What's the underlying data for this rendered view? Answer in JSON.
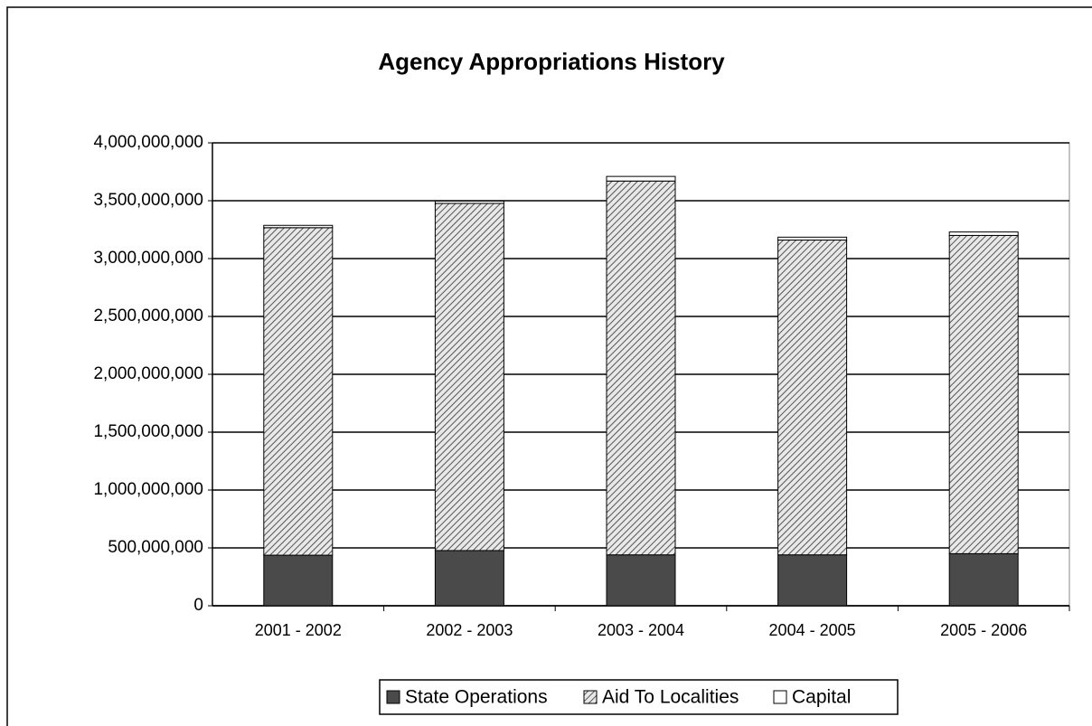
{
  "chart_data": {
    "type": "stacked_bar",
    "title": "Agency Appropriations History",
    "categories": [
      "2001 - 2002",
      "2002 - 2003",
      "2003 - 2004",
      "2004 - 2005",
      "2005 - 2006"
    ],
    "series": [
      {
        "name": "State Operations",
        "color": "#4a4a4a",
        "hatch": false,
        "values": [
          437000000,
          477000000,
          440000000,
          440000000,
          450000000
        ]
      },
      {
        "name": "Aid To Localities",
        "color": "#b8b8b8",
        "hatch": true,
        "values": [
          2830000000,
          3000000000,
          3230000000,
          2720000000,
          2750000000
        ]
      },
      {
        "name": "Capital",
        "color": "#ffffff",
        "hatch": false,
        "values": [
          20000000,
          20000000,
          40000000,
          25000000,
          30000000
        ]
      }
    ],
    "ylim": [
      0,
      4000000000
    ],
    "yticks": [
      0,
      {
        "value": 500000000,
        "label": "500,000,000"
      },
      {
        "value": 1000000000,
        "label": "1,000,000,000"
      },
      {
        "value": 1500000000,
        "label": "1,500,000,000"
      },
      {
        "value": 2000000000,
        "label": "2,000,000,000"
      },
      {
        "value": 2500000000,
        "label": "2,500,000,000"
      },
      {
        "value": 3000000000,
        "label": "3,000,000,000"
      },
      {
        "value": 3500000000,
        "label": "3,500,000,000"
      },
      {
        "value": 4000000000,
        "label": "4,000,000,000"
      }
    ],
    "grid": true,
    "legend": "bottom"
  }
}
